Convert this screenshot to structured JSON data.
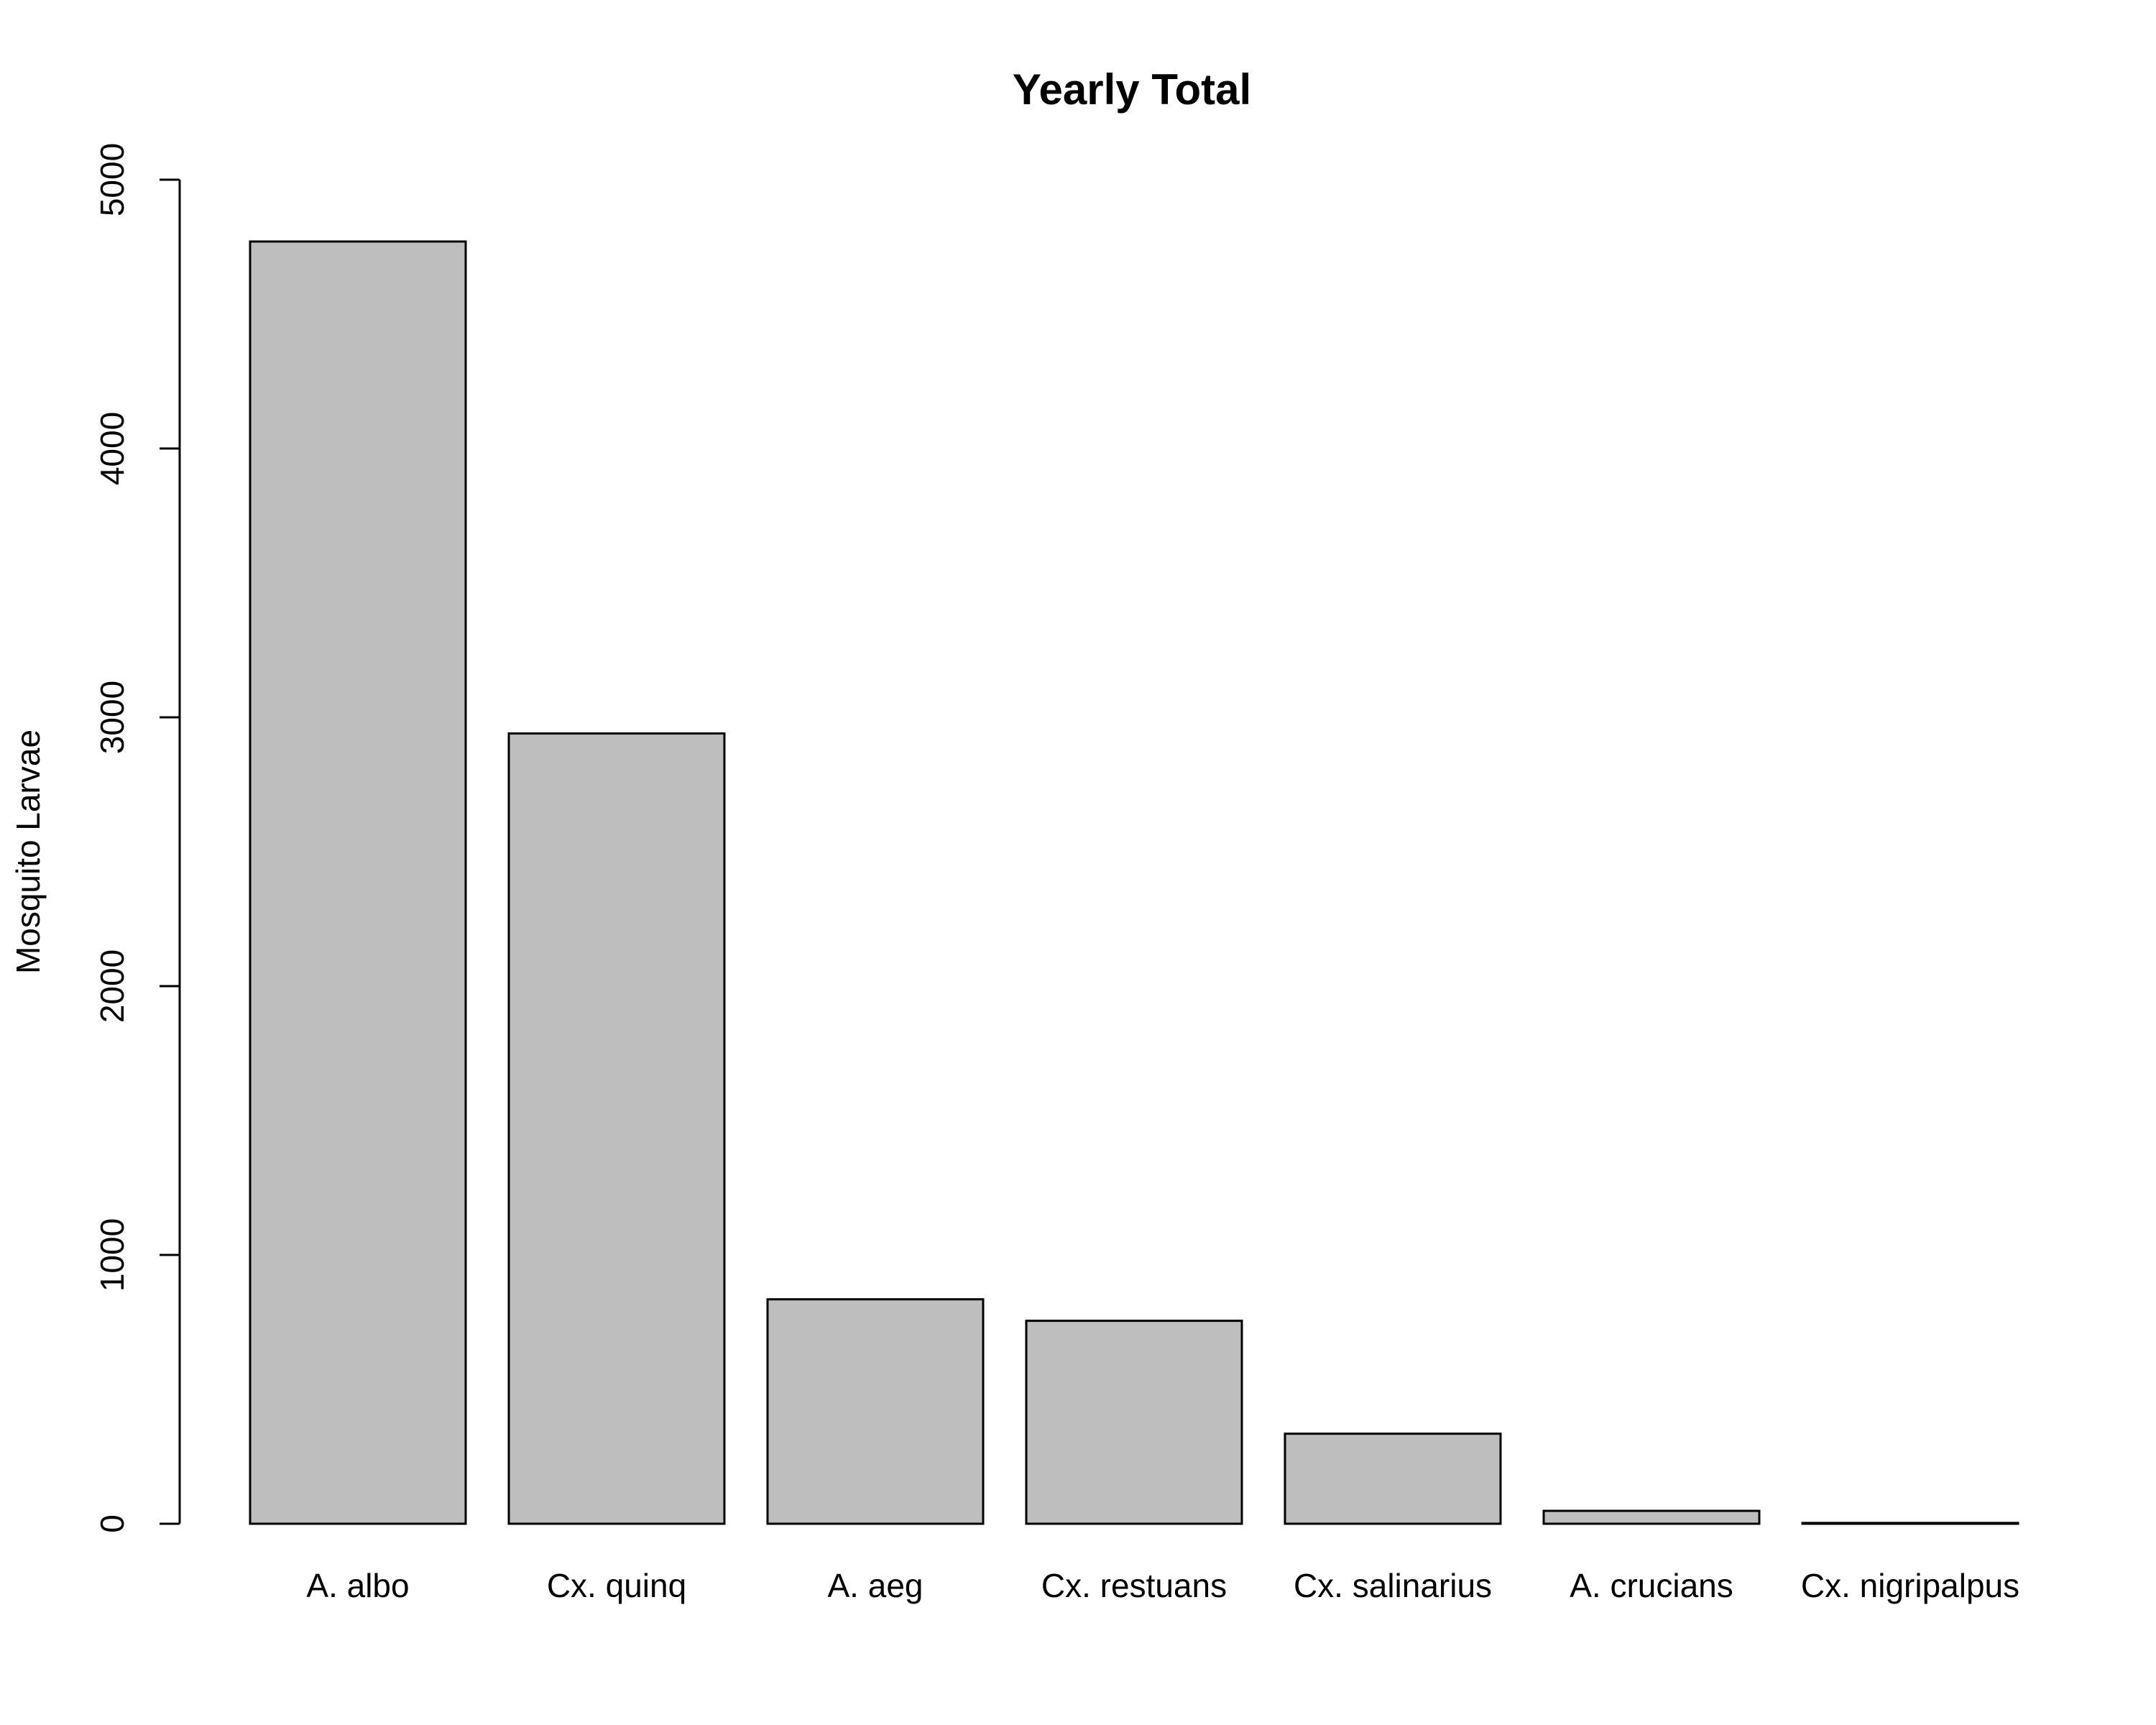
{
  "chart_data": {
    "type": "bar",
    "title": "Yearly Total",
    "xlabel": "",
    "ylabel": "Mosquito Larvae",
    "categories": [
      "A. albo",
      "Cx. quinq",
      "A. aeg",
      "Cx. restuans",
      "Cx. salinarius",
      "A. crucians",
      "Cx. nigripalpus"
    ],
    "values": [
      4770,
      2940,
      835,
      755,
      335,
      48,
      3
    ],
    "ylim": [
      0,
      5000
    ],
    "yticks": [
      0,
      1000,
      2000,
      3000,
      4000,
      5000
    ],
    "grid": false,
    "bar_color": "#bebebe",
    "bar_border_color": "#000000"
  }
}
